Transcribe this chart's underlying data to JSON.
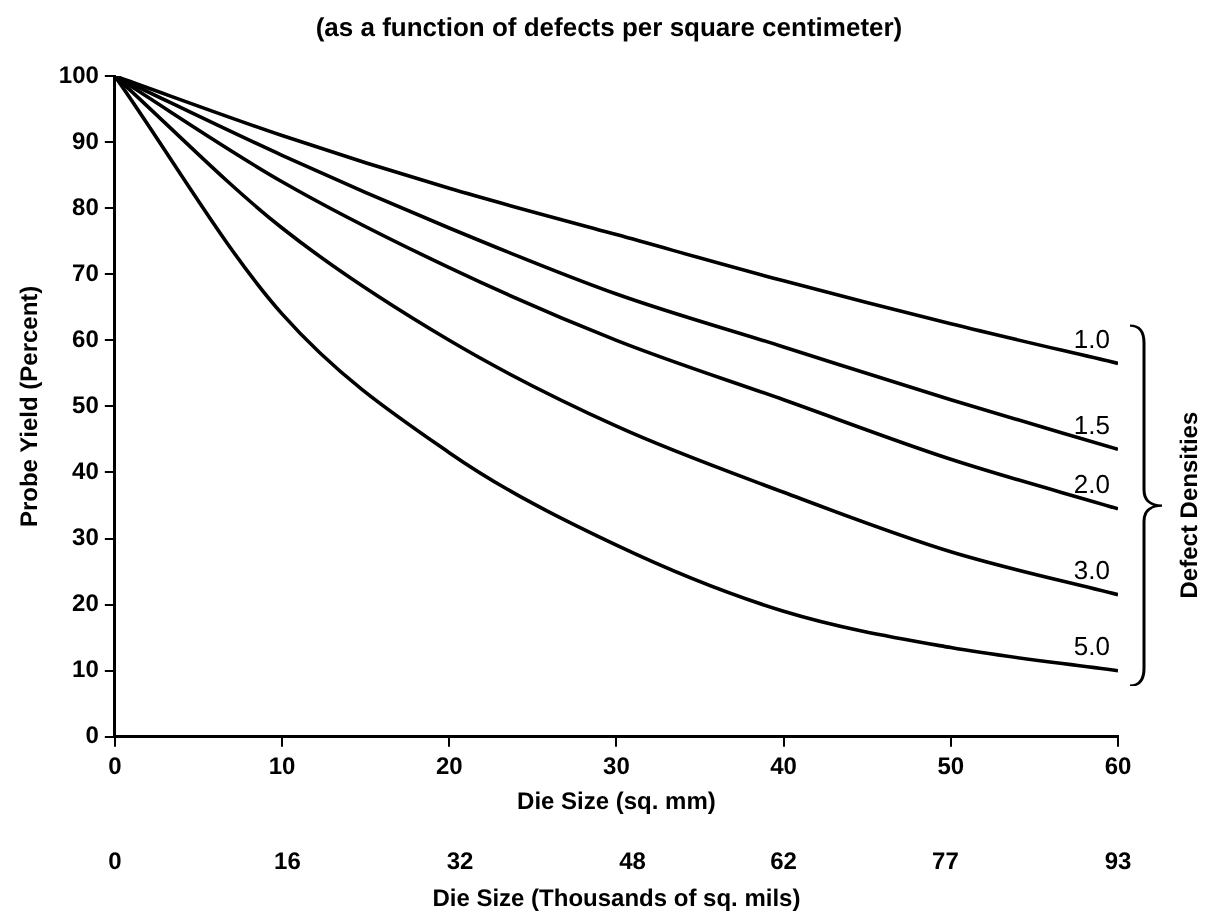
{
  "chart_data": {
    "type": "line",
    "title": "(as a function of defects per square centimeter)",
    "xlabel": "Die Size (sq. mm)",
    "x2label": "Die Size (Thousands of sq. mils)",
    "ylabel": "Probe Yield (Percent)",
    "legend_title": "Defect Densities",
    "x": [
      0,
      10,
      20,
      30,
      40,
      50,
      60
    ],
    "series": [
      {
        "name": "1.0",
        "color": "#000000",
        "values": [
          100,
          91,
          83,
          76,
          69,
          62.5,
          56.5
        ]
      },
      {
        "name": "1.5",
        "color": "#000000",
        "values": [
          100,
          88,
          77,
          67,
          59,
          51,
          43.5
        ]
      },
      {
        "name": "2.0",
        "color": "#000000",
        "values": [
          100,
          84,
          71,
          60,
          51,
          42,
          34.5
        ]
      },
      {
        "name": "3.0",
        "color": "#000000",
        "values": [
          100,
          77,
          60,
          47,
          37,
          28,
          21.5
        ]
      },
      {
        "name": "5.0",
        "color": "#000000",
        "values": [
          100,
          64,
          43,
          29,
          19,
          13.5,
          10
        ]
      }
    ],
    "xlim": [
      0,
      60
    ],
    "xticks": [
      0,
      10,
      20,
      30,
      40,
      50,
      60
    ],
    "x2lim": [
      0,
      93
    ],
    "x2ticks": [
      0,
      16,
      32,
      48,
      62,
      77,
      93
    ],
    "ylim": [
      0,
      100
    ],
    "yticks": [
      0,
      10,
      20,
      30,
      40,
      50,
      60,
      70,
      80,
      90,
      100
    ],
    "grid": false,
    "legend": false,
    "marker": "none",
    "line_style": "solid"
  }
}
